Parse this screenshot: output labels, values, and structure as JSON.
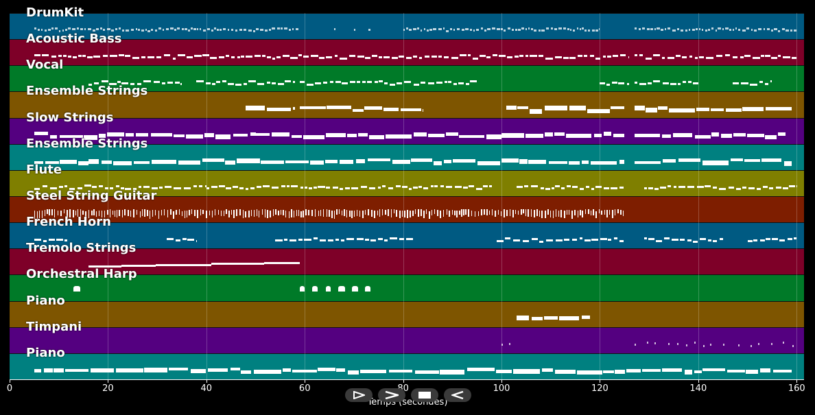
{
  "tracks": [
    {
      "name": "DrumKit",
      "color": "#005a82",
      "style": "drum",
      "segments": [
        [
          5,
          59
        ],
        [
          66,
          66.3
        ],
        [
          70,
          70.3
        ],
        [
          73,
          73.4
        ],
        [
          80,
          120
        ],
        [
          127,
          160
        ]
      ]
    },
    {
      "name": "Acoustic Bass",
      "color": "#7e0028",
      "style": "dash",
      "segments": [
        [
          5,
          126
        ],
        [
          127,
          160
        ]
      ]
    },
    {
      "name": "Vocal",
      "color": "#007a28",
      "style": "dash",
      "segments": [
        [
          16,
          35
        ],
        [
          38,
          58
        ],
        [
          59,
          95
        ],
        [
          120,
          126
        ],
        [
          127,
          140
        ],
        [
          147,
          155
        ]
      ]
    },
    {
      "name": "Ensemble Strings",
      "color": "#7e5500",
      "style": "block",
      "segments": [
        [
          48,
          58
        ],
        [
          59,
          84
        ],
        [
          101,
          125
        ],
        [
          127,
          159
        ]
      ]
    },
    {
      "name": "Slow Strings",
      "color": "#540080",
      "style": "block",
      "segments": [
        [
          5,
          50
        ],
        [
          50,
          100
        ],
        [
          100,
          125
        ],
        [
          127,
          158
        ]
      ]
    },
    {
      "name": "Ensemble Strings",
      "color": "#008080",
      "style": "block",
      "segments": [
        [
          5,
          16
        ],
        [
          16,
          100
        ],
        [
          100,
          125
        ],
        [
          127,
          159
        ]
      ]
    },
    {
      "name": "Flute",
      "color": "#7f7f00",
      "style": "dash",
      "segments": [
        [
          5,
          40
        ],
        [
          40,
          82
        ],
        [
          82,
          98
        ],
        [
          103,
          125
        ],
        [
          129,
          160
        ]
      ]
    },
    {
      "name": "Steel String Guitar",
      "color": "#7e1e00",
      "style": "strum",
      "segments": [
        [
          5,
          125
        ]
      ]
    },
    {
      "name": "French Horn",
      "color": "#005a82",
      "style": "dash",
      "segments": [
        [
          5,
          12
        ],
        [
          32,
          38
        ],
        [
          54,
          82
        ],
        [
          99,
          125
        ],
        [
          129,
          145
        ],
        [
          150,
          160
        ]
      ]
    },
    {
      "name": "Tremolo Strings",
      "color": "#7e0028",
      "style": "line",
      "segments": [
        [
          16,
          59
        ]
      ]
    },
    {
      "name": "Orchestral Harp",
      "color": "#007a28",
      "style": "harp",
      "segments": [
        [
          13,
          15
        ],
        [
          59,
          75
        ]
      ]
    },
    {
      "name": "Piano",
      "color": "#7e5500",
      "style": "block",
      "segments": [
        [
          103,
          118
        ]
      ]
    },
    {
      "name": "Timpani",
      "color": "#540080",
      "style": "dots",
      "segments": [
        [
          100,
          102
        ],
        [
          127,
          160
        ]
      ]
    },
    {
      "name": "Piano",
      "color": "#008080",
      "style": "block",
      "segments": [
        [
          5,
          159
        ]
      ]
    }
  ],
  "x_axis": {
    "label": "Temps (secondes)",
    "min": 0,
    "max": 161.5,
    "ticks": [
      {
        "v": 0,
        "t": "0"
      },
      {
        "v": 20,
        "t": "20"
      },
      {
        "v": 40,
        "t": "40"
      },
      {
        "v": 60,
        "t": "60"
      },
      {
        "v": 80,
        "t": "80"
      },
      {
        "v": 100,
        "t": "100"
      },
      {
        "v": 120,
        "t": "120"
      },
      {
        "v": 140,
        "t": "140"
      },
      {
        "v": 160,
        "t": "160"
      }
    ]
  },
  "controls": [
    {
      "name": "play-button",
      "icon": "play-icon"
    },
    {
      "name": "forward-button",
      "icon": "chevron-right-icon"
    },
    {
      "name": "stop-button",
      "icon": "stop-icon"
    },
    {
      "name": "back-button",
      "icon": "chevron-left-icon"
    }
  ]
}
